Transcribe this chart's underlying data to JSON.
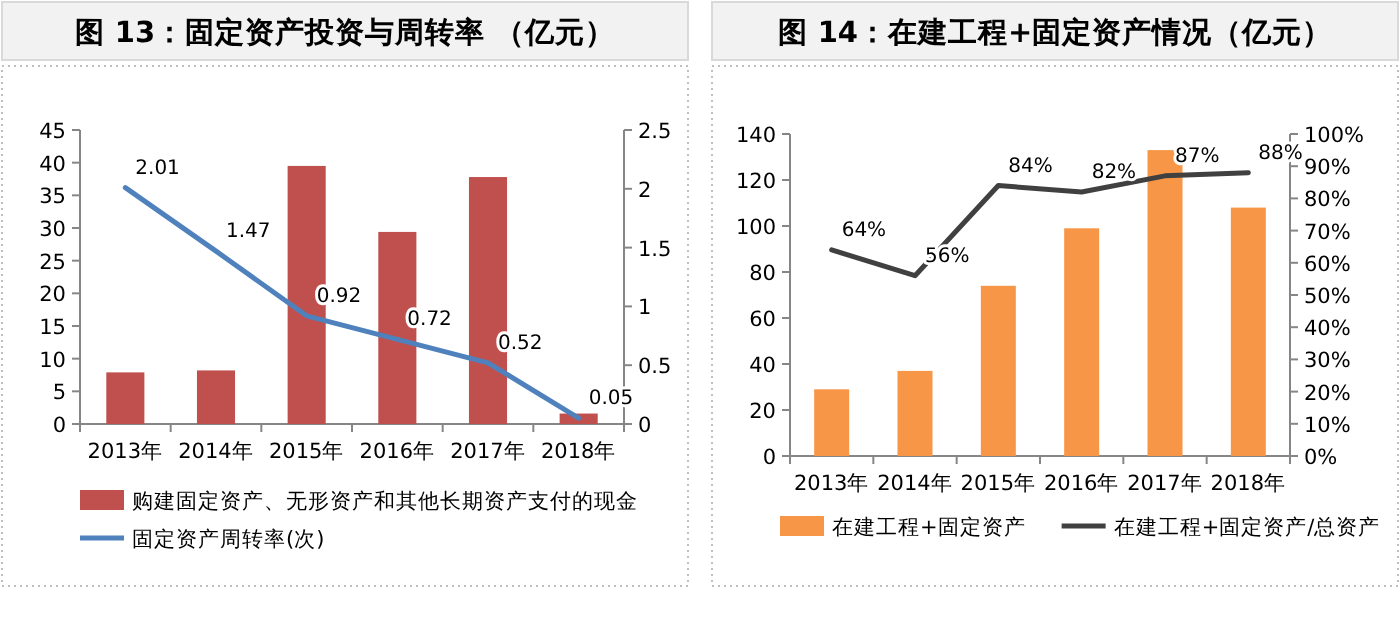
{
  "chart_data": [
    {
      "type": "bar",
      "title": "图 13：固定资产投资与周转率 （亿元）",
      "categories": [
        "2013年",
        "2014年",
        "2015年",
        "2016年",
        "2017年",
        "2018年"
      ],
      "series": [
        {
          "name": "购建固定资产、无形资产和其他长期资产支付的现金",
          "color": "#c0504d",
          "values": [
            7.9,
            8.2,
            39.5,
            29.4,
            37.8,
            1.6
          ]
        },
        {
          "name": "固定资产周转率(次)",
          "type": "line",
          "axis": "y2",
          "color": "#4f81bd",
          "values": [
            2.01,
            1.47,
            0.92,
            0.72,
            0.52,
            0.05
          ],
          "value_labels": [
            "2.01",
            "1.47",
            "0.92",
            "0.72",
            "0.52",
            "0.05"
          ]
        }
      ],
      "ylim": [
        0,
        45
      ],
      "yticks": [
        0,
        5,
        10,
        15,
        20,
        25,
        30,
        35,
        40,
        45
      ],
      "y2lim": [
        0,
        2.5
      ],
      "y2ticks": [
        0,
        0.5,
        1,
        1.5,
        2,
        2.5
      ],
      "legend": "bottom",
      "grid": false
    },
    {
      "type": "bar",
      "title": "图 14：在建工程+固定资产情况（亿元）",
      "categories": [
        "2013年",
        "2014年",
        "2015年",
        "2016年",
        "2017年",
        "2018年"
      ],
      "series": [
        {
          "name": "在建工程+固定资产",
          "color": "#f79646",
          "values": [
            29,
            37,
            74,
            99,
            133,
            108
          ]
        },
        {
          "name": "在建工程+固定资产/总资产",
          "type": "line",
          "axis": "y2",
          "color": "#404040",
          "values": [
            64,
            56,
            84,
            82,
            87,
            88
          ],
          "value_labels": [
            "64%",
            "56%",
            "84%",
            "82%",
            "87%",
            "88%"
          ]
        }
      ],
      "ylim": [
        0,
        140
      ],
      "yticks": [
        0,
        20,
        40,
        60,
        80,
        100,
        120,
        140
      ],
      "y2lim": [
        0,
        100
      ],
      "y2ticks": [
        {
          "value": 0,
          "label": "0%"
        },
        {
          "value": 10,
          "label": "10%"
        },
        {
          "value": 20,
          "label": "20%"
        },
        {
          "value": 30,
          "label": "30%"
        },
        {
          "value": 40,
          "label": "40%"
        },
        {
          "value": 50,
          "label": "50%"
        },
        {
          "value": 60,
          "label": "60%"
        },
        {
          "value": 70,
          "label": "70%"
        },
        {
          "value": 80,
          "label": "80%"
        },
        {
          "value": 90,
          "label": "90%"
        },
        {
          "value": 100,
          "label": "100%"
        }
      ],
      "legend": "bottom",
      "grid": false
    }
  ]
}
